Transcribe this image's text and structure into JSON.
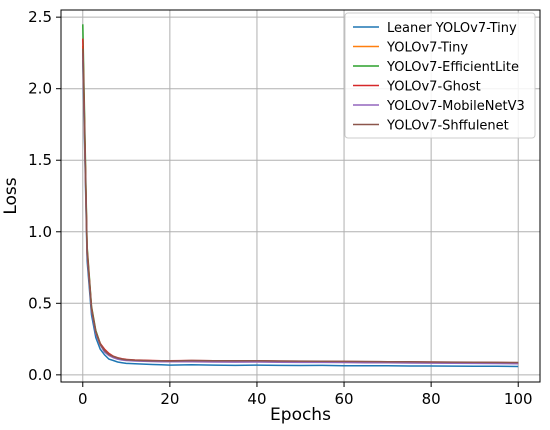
{
  "chart_data": {
    "type": "line",
    "title": "",
    "xlabel": "Epochs",
    "ylabel": "Loss",
    "xlim": [
      -5,
      105
    ],
    "ylim": [
      -0.05,
      2.55
    ],
    "xticks": [
      0,
      20,
      40,
      60,
      80,
      100
    ],
    "yticks": [
      0.0,
      0.5,
      1.0,
      1.5,
      2.0,
      2.5
    ],
    "xtick_labels": [
      "0",
      "20",
      "40",
      "60",
      "80",
      "100"
    ],
    "ytick_labels": [
      "0.0",
      "0.5",
      "1.0",
      "1.5",
      "2.0",
      "2.5"
    ],
    "grid": true,
    "legend_position": "top-right",
    "x": [
      0,
      1,
      2,
      3,
      4,
      5,
      6,
      7,
      8,
      9,
      10,
      12,
      14,
      16,
      18,
      20,
      25,
      30,
      35,
      40,
      45,
      50,
      55,
      60,
      65,
      70,
      75,
      80,
      85,
      90,
      95,
      100
    ],
    "series": [
      {
        "name": "Leaner YOLOv7-Tiny",
        "color": "#1f77b4",
        "values": [
          2.2,
          0.8,
          0.42,
          0.26,
          0.18,
          0.14,
          0.11,
          0.1,
          0.09,
          0.085,
          0.08,
          0.078,
          0.075,
          0.072,
          0.07,
          0.068,
          0.07,
          0.068,
          0.066,
          0.068,
          0.066,
          0.065,
          0.066,
          0.064,
          0.063,
          0.064,
          0.062,
          0.062,
          0.061,
          0.06,
          0.06,
          0.058
        ]
      },
      {
        "name": "YOLOv7-Tiny",
        "color": "#ff7f0e",
        "values": [
          2.3,
          0.85,
          0.46,
          0.3,
          0.21,
          0.17,
          0.14,
          0.125,
          0.115,
          0.108,
          0.105,
          0.1,
          0.098,
          0.096,
          0.095,
          0.094,
          0.095,
          0.093,
          0.092,
          0.093,
          0.092,
          0.09,
          0.09,
          0.089,
          0.088,
          0.088,
          0.086,
          0.085,
          0.085,
          0.084,
          0.083,
          0.082
        ]
      },
      {
        "name": "YOLOv7-EfficientLite",
        "color": "#2ca02c",
        "values": [
          2.45,
          0.9,
          0.48,
          0.31,
          0.22,
          0.17,
          0.14,
          0.125,
          0.115,
          0.11,
          0.105,
          0.1,
          0.098,
          0.097,
          0.096,
          0.095,
          0.096,
          0.094,
          0.093,
          0.092,
          0.092,
          0.09,
          0.09,
          0.089,
          0.088,
          0.087,
          0.086,
          0.085,
          0.084,
          0.083,
          0.082,
          0.08
        ]
      },
      {
        "name": "YOLOv7-Ghost",
        "color": "#d62728",
        "values": [
          2.35,
          0.88,
          0.47,
          0.3,
          0.22,
          0.18,
          0.15,
          0.13,
          0.12,
          0.113,
          0.108,
          0.104,
          0.102,
          0.1,
          0.099,
          0.098,
          0.1,
          0.098,
          0.097,
          0.098,
          0.096,
          0.095,
          0.094,
          0.093,
          0.092,
          0.091,
          0.09,
          0.089,
          0.088,
          0.087,
          0.086,
          0.085
        ]
      },
      {
        "name": "YOLOv7-MobileNetV3",
        "color": "#9467bd",
        "values": [
          2.25,
          0.84,
          0.45,
          0.29,
          0.21,
          0.16,
          0.135,
          0.12,
          0.11,
          0.104,
          0.1,
          0.097,
          0.095,
          0.093,
          0.092,
          0.091,
          0.092,
          0.09,
          0.089,
          0.09,
          0.088,
          0.087,
          0.087,
          0.086,
          0.085,
          0.084,
          0.083,
          0.082,
          0.081,
          0.08,
          0.079,
          0.078
        ]
      },
      {
        "name": "YOLOv7-Shffulenet",
        "color": "#8c564b",
        "values": [
          2.28,
          0.86,
          0.46,
          0.3,
          0.215,
          0.17,
          0.142,
          0.128,
          0.118,
          0.11,
          0.106,
          0.102,
          0.1,
          0.099,
          0.098,
          0.097,
          0.1,
          0.099,
          0.098,
          0.099,
          0.097,
          0.096,
          0.095,
          0.094,
          0.093,
          0.092,
          0.091,
          0.09,
          0.089,
          0.088,
          0.087,
          0.086
        ]
      }
    ]
  }
}
